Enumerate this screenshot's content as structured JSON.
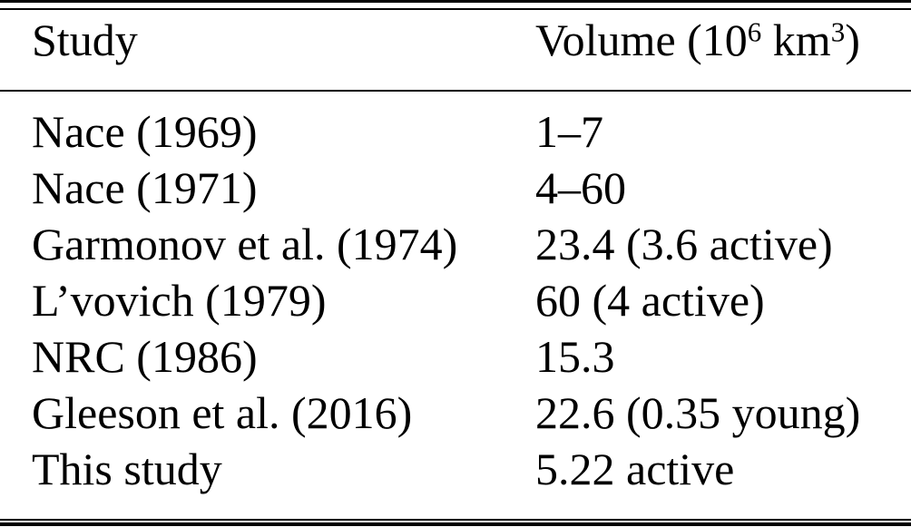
{
  "table": {
    "header": {
      "study_label": "Study",
      "volume_label": {
        "prefix": "Volume (10",
        "exp1": "6",
        "mid": " km",
        "exp2": "3",
        "suffix": ")"
      }
    },
    "rows": [
      {
        "study": "Nace (1969)",
        "volume": "1–7"
      },
      {
        "study": "Nace (1971)",
        "volume": "4–60"
      },
      {
        "study": "Garmonov et al. (1974)",
        "volume": "23.4 (3.6 active)"
      },
      {
        "study": "L’vovich (1979)",
        "volume": "60 (4 active)"
      },
      {
        "study": "NRC (1986)",
        "volume": "15.3"
      },
      {
        "study": "Gleeson et al. (2016)",
        "volume": "22.6 (0.35 young)"
      },
      {
        "study": "This study",
        "volume": "5.22 active"
      }
    ],
    "colors": {
      "text": "#000000",
      "background": "#ffffff",
      "rule": "#000000"
    }
  }
}
